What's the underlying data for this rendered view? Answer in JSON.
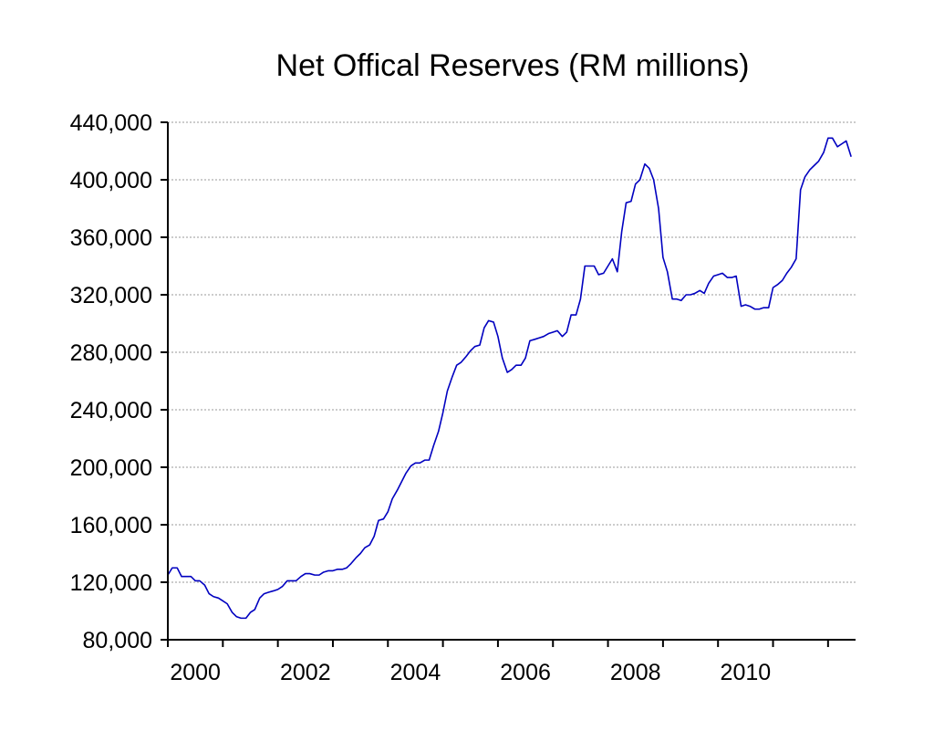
{
  "chart_data": {
    "type": "line",
    "title": "Net Offical Reserves (RM millions)",
    "xlabel": "",
    "ylabel": "",
    "xlim": [
      2000.0,
      2012.5
    ],
    "ylim": [
      80000,
      440000
    ],
    "yticks": [
      80000,
      120000,
      160000,
      200000,
      240000,
      280000,
      320000,
      360000,
      400000,
      440000
    ],
    "ytick_labels": [
      "80,000",
      "120,000",
      "160,000",
      "200,000",
      "240,000",
      "280,000",
      "320,000",
      "360,000",
      "400,000",
      "440,000"
    ],
    "xticks": [
      2000,
      2001,
      2002,
      2003,
      2004,
      2005,
      2006,
      2007,
      2008,
      2009,
      2010,
      2011,
      2012
    ],
    "xtick_labels": [
      {
        "x": 2000.5,
        "label": "2000"
      },
      {
        "x": 2002.5,
        "label": "2002"
      },
      {
        "x": 2004.5,
        "label": "2004"
      },
      {
        "x": 2006.5,
        "label": "2006"
      },
      {
        "x": 2008.5,
        "label": "2008"
      },
      {
        "x": 2010.5,
        "label": "2010"
      }
    ],
    "grid": true,
    "series": [
      {
        "name": "Net Official Reserves",
        "color": "#0000c0",
        "points": [
          [
            2000.0,
            125000
          ],
          [
            2000.08,
            130000
          ],
          [
            2000.17,
            130000
          ],
          [
            2000.25,
            124000
          ],
          [
            2000.33,
            124000
          ],
          [
            2000.42,
            124000
          ],
          [
            2000.5,
            121000
          ],
          [
            2000.58,
            121000
          ],
          [
            2000.67,
            118000
          ],
          [
            2000.75,
            112000
          ],
          [
            2000.83,
            110000
          ],
          [
            2000.92,
            109000
          ],
          [
            2001.0,
            107000
          ],
          [
            2001.08,
            105000
          ],
          [
            2001.17,
            99000
          ],
          [
            2001.25,
            96000
          ],
          [
            2001.33,
            95000
          ],
          [
            2001.42,
            95000
          ],
          [
            2001.5,
            99000
          ],
          [
            2001.58,
            101000
          ],
          [
            2001.67,
            109000
          ],
          [
            2001.75,
            112000
          ],
          [
            2001.83,
            113000
          ],
          [
            2001.92,
            114000
          ],
          [
            2002.0,
            115000
          ],
          [
            2002.08,
            117000
          ],
          [
            2002.17,
            121000
          ],
          [
            2002.25,
            121000
          ],
          [
            2002.33,
            121000
          ],
          [
            2002.42,
            124000
          ],
          [
            2002.5,
            126000
          ],
          [
            2002.58,
            126000
          ],
          [
            2002.67,
            125000
          ],
          [
            2002.75,
            125000
          ],
          [
            2002.83,
            127000
          ],
          [
            2002.92,
            128000
          ],
          [
            2003.0,
            128000
          ],
          [
            2003.08,
            129000
          ],
          [
            2003.17,
            129000
          ],
          [
            2003.25,
            130000
          ],
          [
            2003.33,
            133000
          ],
          [
            2003.42,
            137000
          ],
          [
            2003.5,
            140000
          ],
          [
            2003.58,
            144000
          ],
          [
            2003.67,
            146000
          ],
          [
            2003.75,
            152000
          ],
          [
            2003.83,
            163000
          ],
          [
            2003.92,
            164000
          ],
          [
            2004.0,
            169000
          ],
          [
            2004.08,
            178000
          ],
          [
            2004.17,
            184000
          ],
          [
            2004.25,
            190000
          ],
          [
            2004.33,
            196000
          ],
          [
            2004.42,
            201000
          ],
          [
            2004.5,
            203000
          ],
          [
            2004.58,
            203000
          ],
          [
            2004.67,
            205000
          ],
          [
            2004.75,
            205000
          ],
          [
            2004.83,
            215000
          ],
          [
            2004.92,
            225000
          ],
          [
            2005.0,
            238000
          ],
          [
            2005.08,
            253000
          ],
          [
            2005.17,
            263000
          ],
          [
            2005.25,
            271000
          ],
          [
            2005.33,
            273000
          ],
          [
            2005.42,
            277000
          ],
          [
            2005.5,
            281000
          ],
          [
            2005.58,
            284000
          ],
          [
            2005.67,
            285000
          ],
          [
            2005.75,
            297000
          ],
          [
            2005.83,
            302000
          ],
          [
            2005.92,
            301000
          ],
          [
            2006.0,
            291000
          ],
          [
            2006.08,
            276000
          ],
          [
            2006.17,
            266000
          ],
          [
            2006.25,
            268000
          ],
          [
            2006.33,
            271000
          ],
          [
            2006.42,
            271000
          ],
          [
            2006.5,
            276000
          ],
          [
            2006.58,
            288000
          ],
          [
            2006.67,
            289000
          ],
          [
            2006.75,
            290000
          ],
          [
            2006.83,
            291000
          ],
          [
            2006.92,
            293000
          ],
          [
            2007.0,
            294000
          ],
          [
            2007.08,
            295000
          ],
          [
            2007.17,
            291000
          ],
          [
            2007.25,
            294000
          ],
          [
            2007.33,
            306000
          ],
          [
            2007.42,
            306000
          ],
          [
            2007.5,
            317000
          ],
          [
            2007.58,
            340000
          ],
          [
            2007.67,
            340000
          ],
          [
            2007.75,
            340000
          ],
          [
            2007.83,
            334000
          ],
          [
            2007.92,
            335000
          ],
          [
            2008.0,
            340000
          ],
          [
            2008.08,
            345000
          ],
          [
            2008.17,
            336000
          ],
          [
            2008.25,
            364000
          ],
          [
            2008.33,
            384000
          ],
          [
            2008.42,
            385000
          ],
          [
            2008.5,
            397000
          ],
          [
            2008.58,
            400000
          ],
          [
            2008.67,
            411000
          ],
          [
            2008.75,
            408000
          ],
          [
            2008.83,
            400000
          ],
          [
            2008.92,
            380000
          ],
          [
            2009.0,
            346000
          ],
          [
            2009.08,
            336000
          ],
          [
            2009.17,
            317000
          ],
          [
            2009.25,
            317000
          ],
          [
            2009.33,
            316000
          ],
          [
            2009.42,
            320000
          ],
          [
            2009.5,
            320000
          ],
          [
            2009.58,
            321000
          ],
          [
            2009.67,
            323000
          ],
          [
            2009.75,
            321000
          ],
          [
            2009.83,
            328000
          ],
          [
            2009.92,
            333000
          ],
          [
            2010.0,
            334000
          ],
          [
            2010.08,
            335000
          ],
          [
            2010.17,
            332000
          ],
          [
            2010.25,
            332000
          ],
          [
            2010.33,
            333000
          ],
          [
            2010.42,
            312000
          ],
          [
            2010.5,
            313000
          ],
          [
            2010.58,
            312000
          ],
          [
            2010.67,
            310000
          ],
          [
            2010.75,
            310000
          ],
          [
            2010.83,
            311000
          ],
          [
            2010.92,
            311000
          ],
          [
            2011.0,
            325000
          ],
          [
            2011.08,
            327000
          ],
          [
            2011.17,
            330000
          ],
          [
            2011.25,
            335000
          ],
          [
            2011.33,
            339000
          ],
          [
            2011.42,
            345000
          ],
          [
            2011.5,
            393000
          ],
          [
            2011.58,
            402000
          ],
          [
            2011.67,
            407000
          ],
          [
            2011.75,
            410000
          ],
          [
            2011.83,
            413000
          ],
          [
            2011.92,
            419000
          ],
          [
            2012.0,
            429000
          ],
          [
            2012.08,
            429000
          ],
          [
            2012.17,
            423000
          ],
          [
            2012.25,
            425000
          ],
          [
            2012.33,
            427000
          ],
          [
            2012.42,
            416000
          ]
        ]
      }
    ]
  }
}
